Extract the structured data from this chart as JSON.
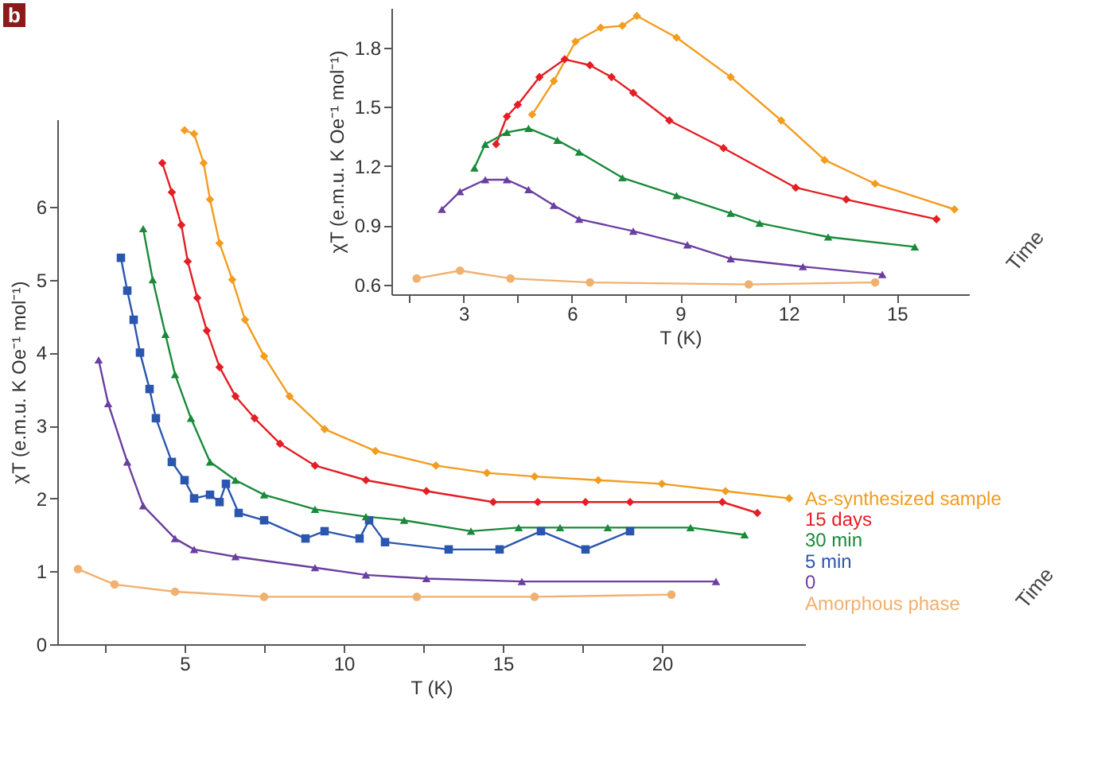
{
  "chart_data": [
    {
      "type": "line",
      "xlabel": "T (K)",
      "ylabel": "χT (e.m.u. K Oe⁻¹ mol⁻¹)",
      "annotations": [
        "b",
        "Time"
      ],
      "grid": false,
      "xlim": [
        1,
        24.5
      ],
      "ylim": [
        0,
        7.2
      ],
      "xticks": [
        {
          "value": 2.5,
          "label": null
        },
        5,
        {
          "value": 7.5,
          "label": null
        },
        10,
        {
          "value": 12.5,
          "label": null
        },
        15,
        {
          "value": 17.5,
          "label": null
        },
        20
      ],
      "yticks": [
        0,
        1,
        2,
        3,
        4,
        5,
        6
      ],
      "series": [
        {
          "name": "As-synthesized sample",
          "color": "#f39c1e",
          "marker": "diamond",
          "x": [
            5.0,
            5.3,
            5.6,
            5.8,
            6.1,
            6.5,
            6.9,
            7.5,
            8.3,
            9.4,
            11.0,
            12.9,
            14.5,
            16.0,
            18.0,
            20.0,
            22.0,
            24.0
          ],
          "values": [
            7.05,
            7.0,
            6.6,
            6.1,
            5.5,
            5.0,
            4.45,
            3.95,
            3.4,
            2.95,
            2.65,
            2.45,
            2.35,
            2.3,
            2.25,
            2.2,
            2.1,
            2.0
          ]
        },
        {
          "name": "15 days",
          "color": "#e31e24",
          "marker": "diamond",
          "x": [
            4.3,
            4.6,
            4.9,
            5.1,
            5.4,
            5.7,
            6.1,
            6.6,
            7.2,
            8.0,
            9.1,
            10.7,
            12.6,
            14.7,
            16.1,
            17.6,
            19.0,
            21.9,
            23.0
          ],
          "values": [
            6.6,
            6.2,
            5.75,
            5.25,
            4.75,
            4.3,
            3.8,
            3.4,
            3.1,
            2.75,
            2.45,
            2.25,
            2.1,
            1.95,
            1.95,
            1.95,
            1.95,
            1.95,
            1.8
          ]
        },
        {
          "name": "30 min",
          "color": "#1a8a3a",
          "marker": "triangle",
          "x": [
            3.7,
            4.0,
            4.4,
            4.7,
            5.2,
            5.8,
            6.6,
            7.5,
            9.1,
            10.7,
            11.9,
            14.0,
            15.5,
            16.8,
            18.3,
            20.9,
            22.6
          ],
          "values": [
            5.7,
            5.0,
            4.25,
            3.7,
            3.1,
            2.5,
            2.25,
            2.05,
            1.85,
            1.75,
            1.7,
            1.55,
            1.6,
            1.6,
            1.6,
            1.6,
            1.5
          ]
        },
        {
          "name": "5 min",
          "color": "#2a56b0",
          "marker": "square",
          "x": [
            3.0,
            3.2,
            3.4,
            3.6,
            3.9,
            4.1,
            4.6,
            5.0,
            5.3,
            5.8,
            6.1,
            6.3,
            6.7,
            7.5,
            8.8,
            9.4,
            10.5,
            10.8,
            11.3,
            13.3,
            14.9,
            16.2,
            17.6,
            19.0
          ],
          "values": [
            5.3,
            4.85,
            4.45,
            4.0,
            3.5,
            3.1,
            2.5,
            2.25,
            2.0,
            2.05,
            1.95,
            2.2,
            1.8,
            1.7,
            1.45,
            1.55,
            1.45,
            1.7,
            1.4,
            1.3,
            1.3,
            1.55,
            1.3,
            1.55
          ]
        },
        {
          "name": "0",
          "color": "#6a3fa0",
          "marker": "triangle",
          "x": [
            2.3,
            2.6,
            3.2,
            3.7,
            4.7,
            5.3,
            6.6,
            9.1,
            10.7,
            12.6,
            15.6,
            21.7
          ],
          "values": [
            3.9,
            3.3,
            2.5,
            1.9,
            1.45,
            1.3,
            1.2,
            1.05,
            0.95,
            0.9,
            0.86,
            0.86
          ]
        },
        {
          "name": "Amorphous phase",
          "color": "#f0b070",
          "marker": "circle",
          "x": [
            1.65,
            2.8,
            4.7,
            7.5,
            12.3,
            16.0,
            20.3
          ],
          "values": [
            1.03,
            0.82,
            0.72,
            0.65,
            0.65,
            0.65,
            0.68
          ]
        }
      ]
    },
    {
      "type": "line",
      "xlabel": "T (K)",
      "ylabel": "χT (e.m.u. K Oe⁻¹ mol⁻¹)",
      "annotations": [
        "Time"
      ],
      "grid": false,
      "xlim": [
        1,
        17
      ],
      "ylim": [
        0.55,
        2.0
      ],
      "xticks": [
        {
          "value": 1.5,
          "label": null
        },
        3,
        {
          "value": 4.5,
          "label": null
        },
        6,
        {
          "value": 7.5,
          "label": null
        },
        9,
        {
          "value": 10.5,
          "label": null
        },
        12,
        {
          "value": 13.5,
          "label": null
        },
        15
      ],
      "yticks": [
        0.6,
        0.9,
        1.2,
        1.5,
        1.8
      ],
      "series": [
        {
          "color": "#f39c1e",
          "marker": "diamond",
          "x": [
            4.9,
            5.5,
            6.1,
            6.8,
            7.4,
            7.8,
            8.9,
            10.4,
            11.8,
            13.0,
            14.4,
            16.6
          ],
          "values": [
            1.46,
            1.63,
            1.83,
            1.9,
            1.91,
            1.96,
            1.85,
            1.65,
            1.43,
            1.23,
            1.11,
            0.98
          ]
        },
        {
          "color": "#e31e24",
          "marker": "diamond",
          "x": [
            3.9,
            4.2,
            4.5,
            5.1,
            5.8,
            6.5,
            7.1,
            7.7,
            8.7,
            10.2,
            12.2,
            13.6,
            16.1
          ],
          "values": [
            1.31,
            1.45,
            1.51,
            1.65,
            1.74,
            1.71,
            1.65,
            1.57,
            1.43,
            1.29,
            1.09,
            1.03,
            0.93
          ]
        },
        {
          "color": "#1a8a3a",
          "marker": "triangle",
          "x": [
            3.3,
            3.6,
            4.2,
            4.8,
            5.6,
            6.2,
            7.4,
            8.9,
            10.4,
            11.2,
            13.1,
            15.5
          ],
          "values": [
            1.19,
            1.31,
            1.37,
            1.39,
            1.33,
            1.27,
            1.14,
            1.05,
            0.96,
            0.91,
            0.84,
            0.79
          ]
        },
        {
          "color": "#6a3fa0",
          "marker": "triangle",
          "x": [
            2.4,
            2.9,
            3.6,
            4.2,
            4.8,
            5.5,
            6.2,
            7.7,
            9.2,
            10.4,
            12.4,
            14.6
          ],
          "values": [
            0.98,
            1.07,
            1.13,
            1.13,
            1.08,
            1.0,
            0.93,
            0.87,
            0.8,
            0.73,
            0.69,
            0.65
          ]
        },
        {
          "color": "#f0b070",
          "marker": "circle",
          "x": [
            1.7,
            2.9,
            4.3,
            6.5,
            10.9,
            14.4
          ],
          "values": [
            0.63,
            0.67,
            0.63,
            0.61,
            0.6,
            0.61
          ]
        }
      ]
    }
  ]
}
